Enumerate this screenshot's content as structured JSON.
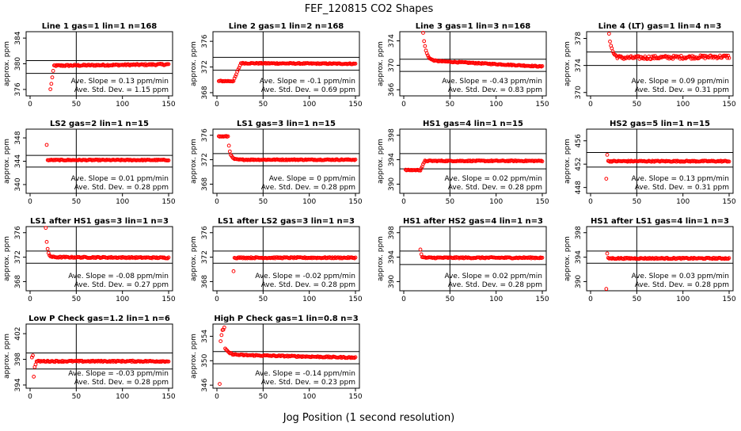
{
  "figure": {
    "title": "FEF_120815  CO2 Shapes",
    "xlabel": "Jog Position (1 second resolution)"
  },
  "colors": {
    "points": "#ff0000",
    "axis": "#000000",
    "background": "#ffffff"
  },
  "chart_data": [
    {
      "type": "scatter",
      "title": "Line 1 gas=1 lin=1 n=168",
      "ylabel": "approx. ppm",
      "xlim": [
        0,
        150
      ],
      "xticks": [
        0,
        50,
        100,
        150
      ],
      "ylim": [
        375,
        385
      ],
      "yticks": [
        376,
        380,
        384
      ],
      "hlines": [
        378.5,
        380.5
      ],
      "vline": 50,
      "slope_text": "Ave. Slope = 0.13 ppm/min",
      "std_text": "Ave. Std. Dev. = 1.15 ppm",
      "trace": {
        "kind": "rise",
        "x0": 22,
        "y_start": 376,
        "y_level": 379.7,
        "y_end": 379.9,
        "rise_len": 4,
        "noise": 0.12
      }
    },
    {
      "type": "scatter",
      "title": "Line 2 gas=1 lin=2 n=168",
      "ylabel": "approx. ppm",
      "xlim": [
        0,
        150
      ],
      "xticks": [
        0,
        50,
        100,
        150
      ],
      "ylim": [
        367.5,
        377.5
      ],
      "yticks": [
        368,
        372,
        376
      ],
      "hlines": [
        371.5,
        373.5
      ],
      "vline": 50,
      "slope_text": "Ave. Slope = -0.1 ppm/min",
      "std_text": "Ave. Std. Dev. = 0.69 ppm",
      "trace": {
        "kind": "rise",
        "x0": 2,
        "y_start": 369.8,
        "y_level": 372.6,
        "y_end": 372.5,
        "plateau_end": 18,
        "rise_len": 8,
        "noise": 0.08
      }
    },
    {
      "type": "scatter",
      "title": "Line 3 gas=1 lin=3 n=168",
      "ylabel": "approx. ppm",
      "xlim": [
        0,
        150
      ],
      "xticks": [
        0,
        50,
        100,
        150
      ],
      "ylim": [
        365,
        375.5
      ],
      "yticks": [
        366,
        370,
        374
      ],
      "hlines": [
        369,
        371
      ],
      "vline": 50,
      "slope_text": "Ave. Slope = -0.43 ppm/min",
      "std_text": "Ave. Std. Dev. = 0.83 ppm",
      "trace": {
        "kind": "decay",
        "x0": 21,
        "y_start": 375.3,
        "y_level": 370.8,
        "y_end": 369.8,
        "tau": 3,
        "noise": 0.08
      }
    },
    {
      "type": "scatter",
      "title": "Line 4 (LT) gas=1 lin=4 n=3",
      "ylabel": "approx. ppm",
      "xlim": [
        0,
        150
      ],
      "xticks": [
        0,
        50,
        100,
        150
      ],
      "ylim": [
        369.5,
        379
      ],
      "yticks": [
        370,
        374,
        378
      ],
      "hlines": [
        374,
        376
      ],
      "vline": 50,
      "slope_text": "Ave. Slope = 0.09 ppm/min",
      "std_text": "Ave. Std. Dev. = 0.31 ppm",
      "trace": {
        "kind": "decay",
        "x0": 20,
        "y_start": 378.8,
        "y_level": 375.1,
        "y_end": 375.3,
        "tau": 3,
        "noise": 0.25
      }
    },
    {
      "type": "scatter",
      "title": "LS2 gas=2 lin=1 n=15",
      "ylabel": "approx. ppm",
      "xlim": [
        0,
        150
      ],
      "xticks": [
        0,
        50,
        100,
        150
      ],
      "ylim": [
        338.5,
        349.5
      ],
      "yticks": [
        340,
        344,
        348
      ],
      "hlines": [
        343,
        345
      ],
      "vline": 50,
      "slope_text": "Ave. Slope = 0.01 ppm/min",
      "std_text": "Ave. Std. Dev. = 0.28 ppm",
      "trace": {
        "kind": "flat",
        "x0": 18,
        "y_level": 344.2,
        "first_y": 346.8,
        "noise": 0.08
      }
    },
    {
      "type": "scatter",
      "title": "LS1 gas=3 lin=1 n=15",
      "ylabel": "approx. ppm",
      "xlim": [
        0,
        150
      ],
      "xticks": [
        0,
        50,
        100,
        150
      ],
      "ylim": [
        366.5,
        377
      ],
      "yticks": [
        368,
        372,
        376
      ],
      "hlines": [
        371,
        373
      ],
      "vline": 50,
      "slope_text": "Ave. Slope = 0 ppm/min",
      "std_text": "Ave. Std. Dev. = 0.28 ppm",
      "trace": {
        "kind": "decay",
        "x0": 2,
        "y_start": 375.8,
        "y_level": 372,
        "y_end": 372,
        "plateau_end": 12,
        "tau": 2,
        "noise": 0.08
      }
    },
    {
      "type": "scatter",
      "title": "HS1 gas=4 lin=1 n=15",
      "ylabel": "approx. ppm",
      "xlim": [
        0,
        150
      ],
      "xticks": [
        0,
        50,
        100,
        150
      ],
      "ylim": [
        388.5,
        399
      ],
      "yticks": [
        390,
        394,
        398
      ],
      "hlines": [
        392.5,
        395
      ],
      "vline": 50,
      "slope_text": "Ave. Slope = 0.02 ppm/min",
      "std_text": "Ave. Std. Dev. = 0.28 ppm",
      "trace": {
        "kind": "rise",
        "x0": 2,
        "y_start": 392.3,
        "y_level": 393.8,
        "y_end": 393.8,
        "plateau_end": 18,
        "rise_len": 5,
        "noise": 0.08
      }
    },
    {
      "type": "scatter",
      "title": "HS2 gas=5 lin=1 n=15",
      "ylabel": "approx. ppm",
      "xlim": [
        0,
        150
      ],
      "xticks": [
        0,
        50,
        100,
        150
      ],
      "ylim": [
        447,
        458
      ],
      "yticks": [
        448,
        452,
        456
      ],
      "hlines": [
        451.5,
        454
      ],
      "vline": 50,
      "slope_text": "Ave. Slope = 0.13 ppm/min",
      "std_text": "Ave. Std. Dev. = 0.31 ppm",
      "trace": {
        "kind": "flat",
        "x0": 17,
        "y_level": 452.5,
        "first_y": 449.5,
        "second_y": 453.6,
        "noise": 0.1
      }
    },
    {
      "type": "scatter",
      "title": "LS1 after HS1 gas=3 lin=1 n=3",
      "ylabel": "approx. ppm",
      "xlim": [
        0,
        150
      ],
      "xticks": [
        0,
        50,
        100,
        150
      ],
      "ylim": [
        366.5,
        377
      ],
      "yticks": [
        368,
        372,
        376
      ],
      "hlines": [
        371,
        373
      ],
      "vline": 50,
      "slope_text": "Ave. Slope = -0.08 ppm/min",
      "std_text": "Ave. Std. Dev. = 0.27 ppm",
      "trace": {
        "kind": "decay",
        "x0": 17,
        "y_start": 376.8,
        "y_level": 372,
        "y_end": 371.9,
        "tau": 1.5,
        "noise": 0.1
      }
    },
    {
      "type": "scatter",
      "title": "LS1 after LS2 gas=3 lin=1 n=3",
      "ylabel": "approx. ppm",
      "xlim": [
        0,
        150
      ],
      "xticks": [
        0,
        50,
        100,
        150
      ],
      "ylim": [
        366.5,
        377
      ],
      "yticks": [
        368,
        372,
        376
      ],
      "hlines": [
        371,
        373
      ],
      "vline": 50,
      "slope_text": "Ave. Slope = -0.02 ppm/min",
      "std_text": "Ave. Std. Dev. = 0.28 ppm",
      "trace": {
        "kind": "flat",
        "x0": 18,
        "y_level": 371.9,
        "first_y": 369.7,
        "noise": 0.1
      }
    },
    {
      "type": "scatter",
      "title": "HS1 after HS2 gas=4 lin=1 n=3",
      "ylabel": "approx. ppm",
      "xlim": [
        0,
        150
      ],
      "xticks": [
        0,
        50,
        100,
        150
      ],
      "ylim": [
        388.5,
        399
      ],
      "yticks": [
        390,
        394,
        398
      ],
      "hlines": [
        392.8,
        395
      ],
      "vline": 50,
      "slope_text": "Ave. Slope = 0.02 ppm/min",
      "std_text": "Ave. Std. Dev. = 0.28 ppm",
      "trace": {
        "kind": "decay",
        "x0": 18,
        "y_start": 395.3,
        "y_level": 393.9,
        "y_end": 393.9,
        "tau": 1,
        "noise": 0.1
      }
    },
    {
      "type": "scatter",
      "title": "HS1 after LS1 gas=4 lin=1 n=3",
      "ylabel": "approx. ppm",
      "xlim": [
        0,
        150
      ],
      "xticks": [
        0,
        50,
        100,
        150
      ],
      "ylim": [
        388.5,
        399
      ],
      "yticks": [
        390,
        394,
        398
      ],
      "hlines": [
        393,
        395
      ],
      "vline": 50,
      "slope_text": "Ave. Slope = 0.03 ppm/min",
      "std_text": "Ave. Std. Dev. = 0.28 ppm",
      "trace": {
        "kind": "flat",
        "x0": 17,
        "y_level": 393.8,
        "first_y": 388.8,
        "second_y": 394.6,
        "noise": 0.1
      }
    },
    {
      "type": "scatter",
      "title": "Low P Check gas=1.2 lin=1 n=6",
      "ylabel": "approx. ppm",
      "xlim": [
        0,
        150
      ],
      "xticks": [
        0,
        50,
        100,
        150
      ],
      "ylim": [
        393.5,
        403.5
      ],
      "yticks": [
        394,
        398,
        402
      ],
      "hlines": [
        396.5,
        399
      ],
      "vline": 50,
      "slope_text": "Ave. Slope = -0.03 ppm/min",
      "std_text": "Ave. Std. Dev. = 0.28 ppm",
      "trace": {
        "kind": "lowp",
        "x0": 2,
        "y_level": 397.7,
        "noise": 0.1
      }
    },
    {
      "type": "scatter",
      "title": "High P Check gas=1 lin=0.8 n=3",
      "ylabel": "approx. ppm",
      "xlim": [
        0,
        150
      ],
      "xticks": [
        0,
        50,
        100,
        150
      ],
      "ylim": [
        345.5,
        356
      ],
      "yticks": [
        346,
        350,
        354
      ],
      "hlines": [
        349.5,
        351.5
      ],
      "vline": 50,
      "slope_text": "Ave. Slope = -0.14 ppm/min",
      "std_text": "Ave. Std. Dev. = 0.23 ppm",
      "trace": {
        "kind": "highp",
        "x0": 3,
        "y_start": 355.5,
        "y_level": 351.0,
        "y_end": 350.5,
        "tau": 4,
        "noise": 0.1
      }
    }
  ]
}
